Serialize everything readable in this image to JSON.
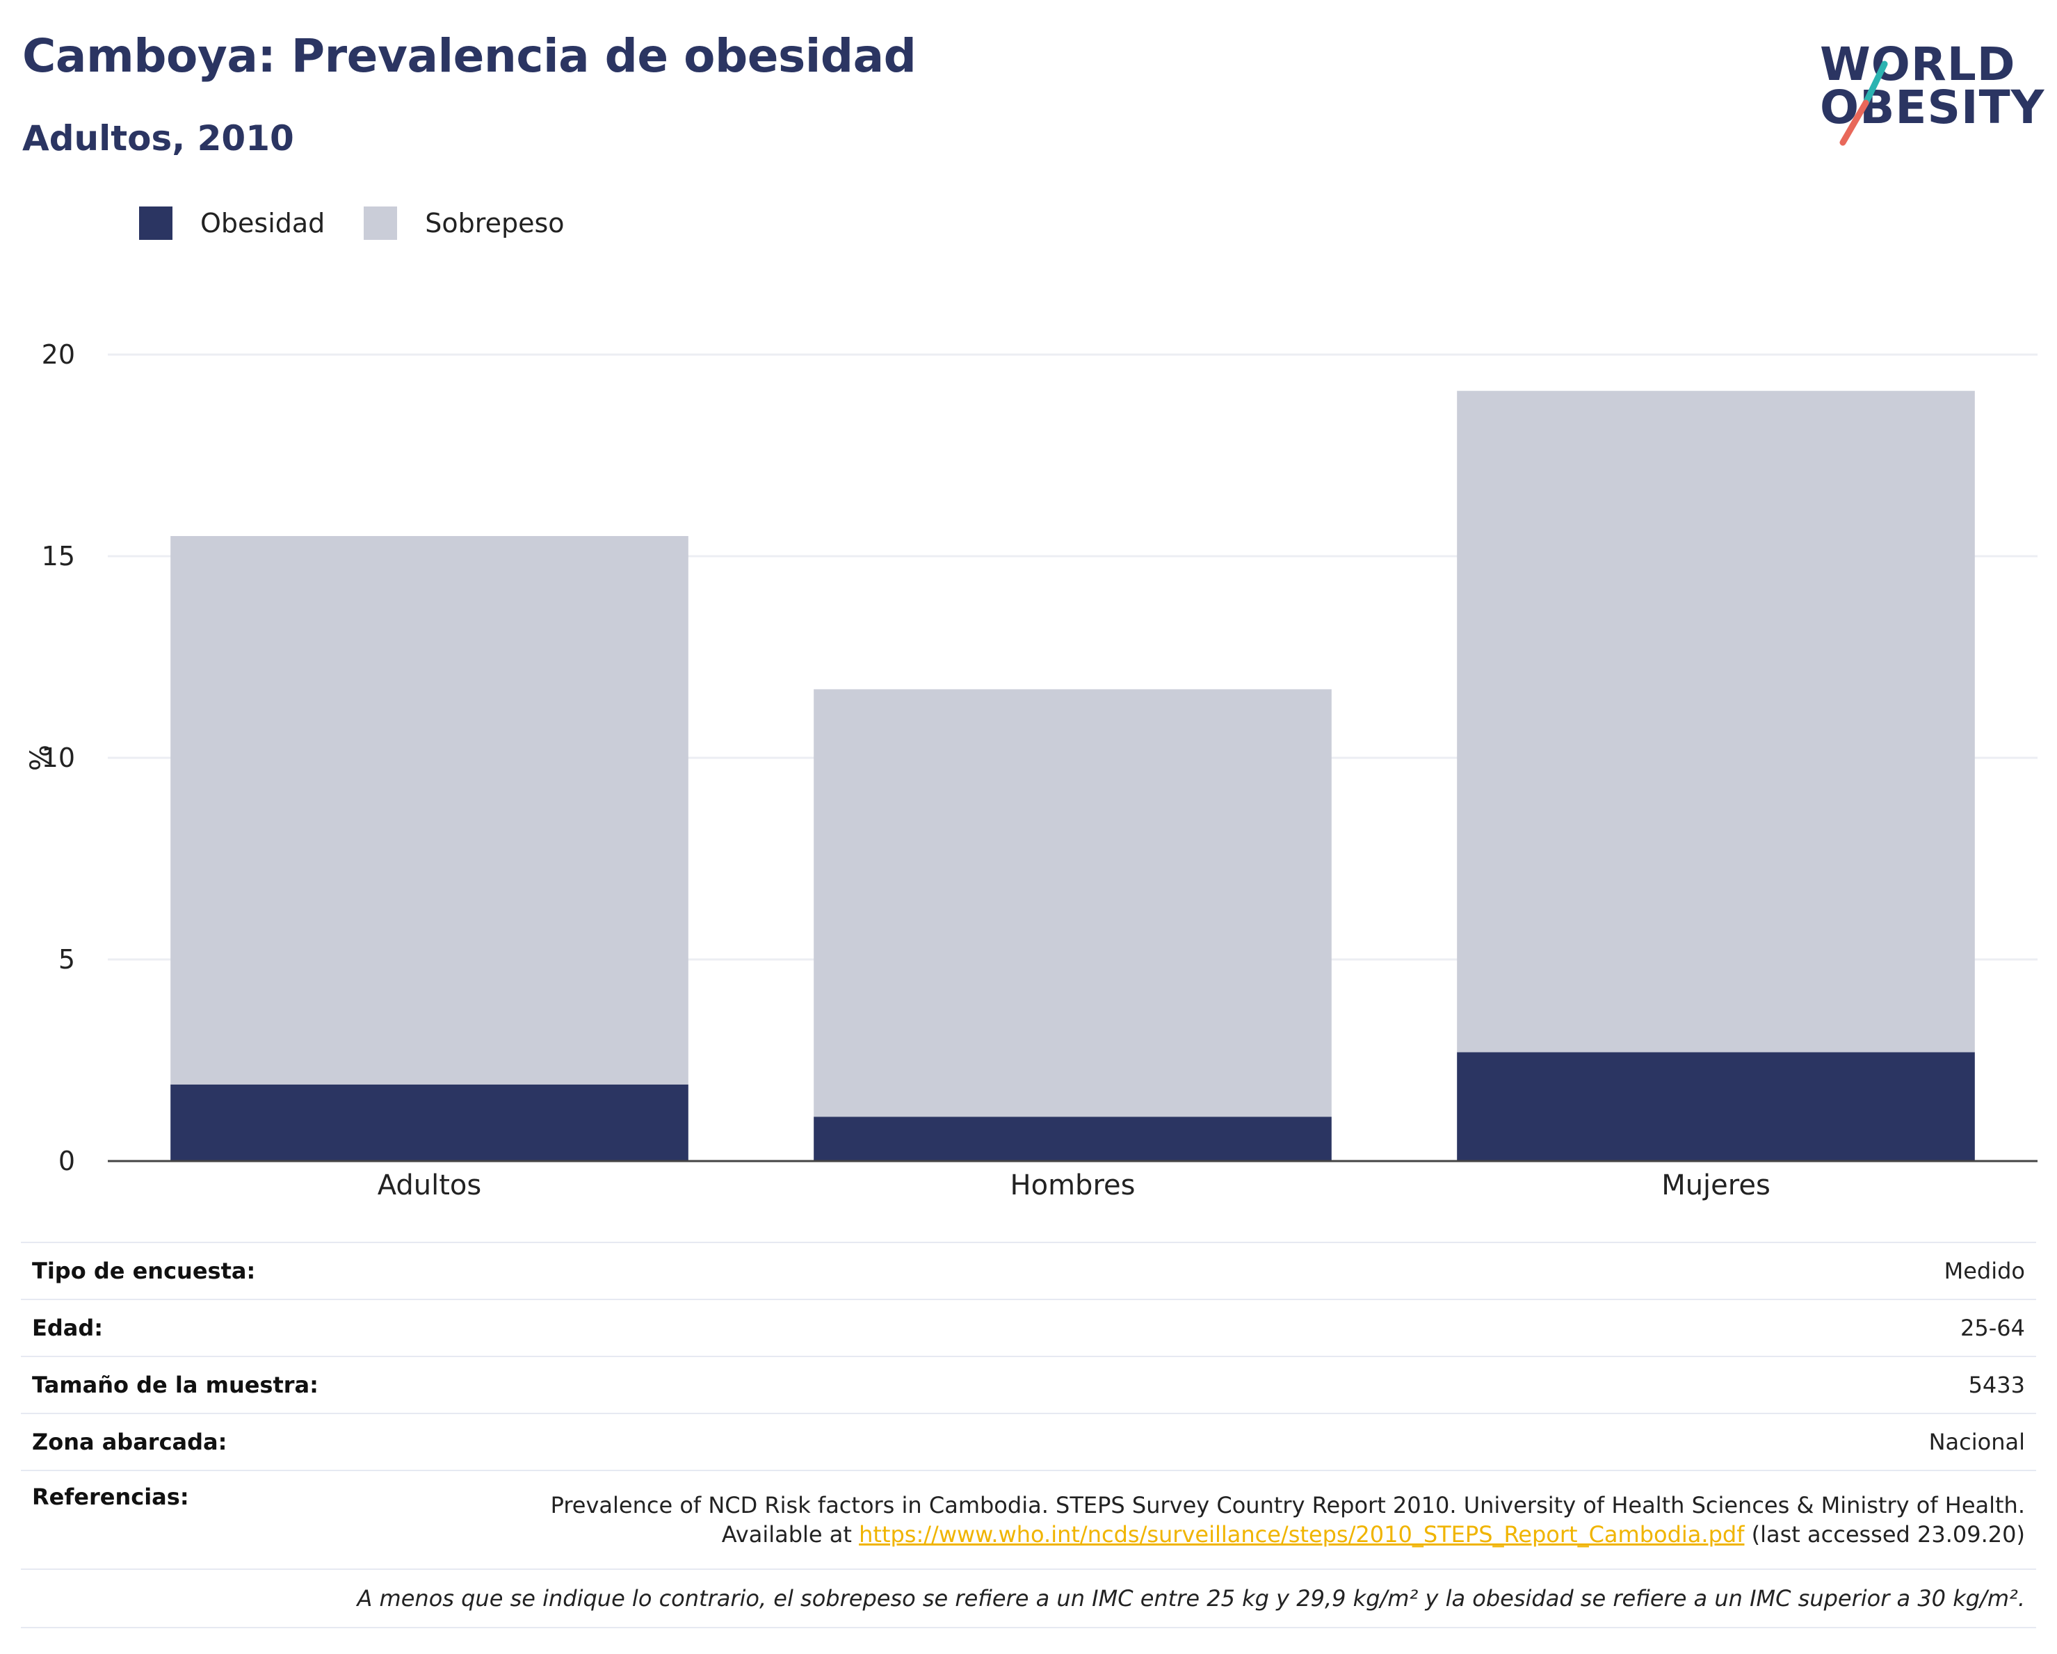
{
  "header": {
    "title": "Camboya: Prevalencia de obesidad",
    "subtitle": "Adultos, 2010"
  },
  "logo": {
    "line1": "WORLD",
    "line2": "OBESITY",
    "colors": {
      "text": "#2b3562",
      "slash_top": "#2bb3b1",
      "slash_bottom": "#e8685a"
    }
  },
  "colors": {
    "obesity": "#2b3562",
    "overweight": "#cacdd8",
    "grid": "#eceef3",
    "axis": "#444444",
    "title": "#2b3562",
    "link": "#f0b400"
  },
  "chart_data": {
    "type": "bar",
    "stacked": true,
    "categories": [
      "Adultos",
      "Hombres",
      "Mujeres"
    ],
    "series": [
      {
        "name": "Obesidad",
        "values": [
          1.9,
          1.1,
          2.7
        ]
      },
      {
        "name": "Sobrepeso",
        "values": [
          13.6,
          10.6,
          16.4
        ]
      }
    ],
    "ylabel": "%",
    "ylim": [
      0,
      20
    ],
    "yticks": [
      0,
      5,
      10,
      15,
      20
    ],
    "grid": true,
    "legend_position": "top-left"
  },
  "info": {
    "rows": [
      {
        "label": "Tipo de encuesta:",
        "value": "Medido"
      },
      {
        "label": "Edad:",
        "value": "25-64"
      },
      {
        "label": "Tamaño de la muestra:",
        "value": "5433"
      },
      {
        "label": "Zona abarcada:",
        "value": "Nacional"
      }
    ],
    "references": {
      "label": "Referencias:",
      "line1": "Prevalence of NCD Risk factors in Cambodia. STEPS Survey Country Report 2010. University of Health Sciences & Ministry of Health.",
      "prefix": "Available at ",
      "url": "https://www.who.int/ncds/surveillance/steps/2010_STEPS_Report_Cambodia.pdf",
      "suffix": " (last accessed 23.09.20)"
    },
    "note": "A menos que se indique lo contrario, el sobrepeso se refiere a un IMC entre 25 kg y 29,9 kg/m² y la obesidad se refiere a un IMC superior a 30 kg/m²."
  }
}
